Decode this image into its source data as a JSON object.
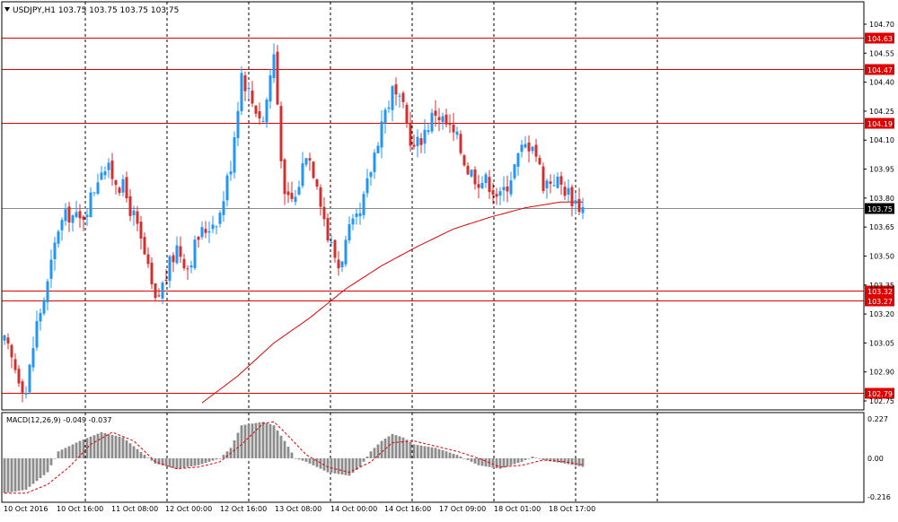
{
  "header": {
    "caption": "USDJPY,H1  103.75 103.75 103.75 103.75"
  },
  "macd": {
    "caption": "MACD(12,26,9) -0.049 -0.037",
    "ticks": [
      "0.227",
      "0.00",
      "-0.216"
    ]
  },
  "colors": {
    "bull": "#2196f3",
    "bear": "#d32f2f",
    "level": "#e00000",
    "ma": "#e00000",
    "macd_hist": "#8c8c8c",
    "signal": "#e00000",
    "grid": "#000000",
    "price_line": "#8a8a8a"
  },
  "chart_data": [
    {
      "type": "candlestick",
      "symbol": "USDJPY",
      "timeframe": "H1",
      "ylim": [
        102.72,
        104.78
      ],
      "y_ticks": [
        "104.70",
        "104.55",
        "104.40",
        "104.25",
        "104.10",
        "103.95",
        "103.80",
        "103.65",
        "103.50",
        "103.35",
        "103.20",
        "103.05",
        "102.90",
        "102.75"
      ],
      "x_labels": [
        "10 Oct 2016",
        "10 Oct 16:00",
        "11 Oct 08:00",
        "12 Oct 00:00",
        "12 Oct 16:00",
        "13 Oct 08:00",
        "14 Oct 00:00",
        "14 Oct 16:00",
        "17 Oct 09:00",
        "18 Oct 01:00",
        "18 Oct 17:00"
      ],
      "horizontal_levels": [
        "104.63",
        "104.47",
        "104.19",
        "103.32",
        "103.27",
        "102.79"
      ],
      "current_price": "103.75",
      "close_path": [
        [
          0,
          103.05
        ],
        [
          3,
          102.92
        ],
        [
          6,
          102.8
        ],
        [
          9,
          103.15
        ],
        [
          12,
          103.35
        ],
        [
          15,
          103.65
        ],
        [
          18,
          103.72
        ],
        [
          21,
          103.68
        ],
        [
          24,
          103.8
        ],
        [
          27,
          103.97
        ],
        [
          30,
          103.92
        ],
        [
          33,
          103.85
        ],
        [
          36,
          103.7
        ],
        [
          39,
          103.5
        ],
        [
          42,
          103.25
        ],
        [
          45,
          103.4
        ],
        [
          48,
          103.55
        ],
        [
          51,
          103.45
        ],
        [
          54,
          103.6
        ],
        [
          57,
          103.66
        ],
        [
          60,
          103.72
        ],
        [
          63,
          103.98
        ],
        [
          66,
          104.45
        ],
        [
          69,
          104.3
        ],
        [
          72,
          104.2
        ],
        [
          75,
          104.55
        ],
        [
          78,
          103.78
        ],
        [
          81,
          103.8
        ],
        [
          84,
          104.05
        ],
        [
          87,
          103.9
        ],
        [
          90,
          103.6
        ],
        [
          93,
          103.45
        ],
        [
          96,
          103.62
        ],
        [
          99,
          103.7
        ],
        [
          102,
          103.95
        ],
        [
          105,
          104.2
        ],
        [
          108,
          104.35
        ],
        [
          111,
          104.25
        ],
        [
          114,
          104.05
        ],
        [
          117,
          104.15
        ],
        [
          120,
          104.25
        ],
        [
          123,
          104.18
        ],
        [
          126,
          104.1
        ],
        [
          129,
          103.95
        ],
        [
          132,
          103.9
        ],
        [
          135,
          103.88
        ],
        [
          138,
          103.8
        ],
        [
          141,
          103.92
        ],
        [
          144,
          104.05
        ],
        [
          147,
          104.1
        ],
        [
          150,
          103.88
        ],
        [
          153,
          103.9
        ],
        [
          156,
          103.85
        ],
        [
          159,
          103.78
        ],
        [
          161,
          103.75
        ]
      ],
      "moving_average": [
        [
          55,
          102.74
        ],
        [
          65,
          102.88
        ],
        [
          75,
          103.05
        ],
        [
          85,
          103.18
        ],
        [
          95,
          103.33
        ],
        [
          105,
          103.45
        ],
        [
          115,
          103.55
        ],
        [
          125,
          103.64
        ],
        [
          135,
          103.7
        ],
        [
          145,
          103.75
        ],
        [
          155,
          103.78
        ],
        [
          161,
          103.78
        ]
      ]
    },
    {
      "type": "bar",
      "name": "MACD(12,26,9)",
      "ylim": [
        -0.216,
        0.227
      ],
      "histogram_path": [
        [
          0,
          -0.2
        ],
        [
          6,
          -0.18
        ],
        [
          12,
          -0.08
        ],
        [
          15,
          0.04
        ],
        [
          21,
          0.1
        ],
        [
          27,
          0.15
        ],
        [
          33,
          0.12
        ],
        [
          39,
          0.02
        ],
        [
          42,
          -0.03
        ],
        [
          48,
          -0.06
        ],
        [
          54,
          -0.04
        ],
        [
          60,
          0.0
        ],
        [
          63,
          0.06
        ],
        [
          66,
          0.19
        ],
        [
          72,
          0.21
        ],
        [
          75,
          0.19
        ],
        [
          78,
          0.1
        ],
        [
          81,
          0.0
        ],
        [
          84,
          -0.02
        ],
        [
          90,
          -0.08
        ],
        [
          96,
          -0.1
        ],
        [
          99,
          -0.05
        ],
        [
          102,
          0.04
        ],
        [
          105,
          0.1
        ],
        [
          108,
          0.14
        ],
        [
          111,
          0.12
        ],
        [
          114,
          0.08
        ],
        [
          120,
          0.06
        ],
        [
          126,
          0.02
        ],
        [
          132,
          -0.04
        ],
        [
          138,
          -0.06
        ],
        [
          141,
          -0.04
        ],
        [
          144,
          -0.02
        ],
        [
          147,
          0.01
        ],
        [
          150,
          -0.01
        ],
        [
          156,
          -0.03
        ],
        [
          161,
          -0.049
        ]
      ],
      "signal_path": [
        [
          0,
          -0.2
        ],
        [
          6,
          -0.2
        ],
        [
          12,
          -0.15
        ],
        [
          18,
          -0.05
        ],
        [
          24,
          0.08
        ],
        [
          30,
          0.15
        ],
        [
          36,
          0.1
        ],
        [
          42,
          -0.02
        ],
        [
          48,
          -0.06
        ],
        [
          54,
          -0.05
        ],
        [
          60,
          -0.02
        ],
        [
          66,
          0.08
        ],
        [
          72,
          0.2
        ],
        [
          75,
          0.21
        ],
        [
          78,
          0.15
        ],
        [
          84,
          0.02
        ],
        [
          90,
          -0.05
        ],
        [
          96,
          -0.08
        ],
        [
          102,
          -0.02
        ],
        [
          108,
          0.09
        ],
        [
          114,
          0.1
        ],
        [
          120,
          0.07
        ],
        [
          126,
          0.04
        ],
        [
          132,
          0.0
        ],
        [
          138,
          -0.05
        ],
        [
          144,
          -0.04
        ],
        [
          150,
          -0.01
        ],
        [
          156,
          -0.02
        ],
        [
          161,
          -0.037
        ]
      ]
    }
  ]
}
